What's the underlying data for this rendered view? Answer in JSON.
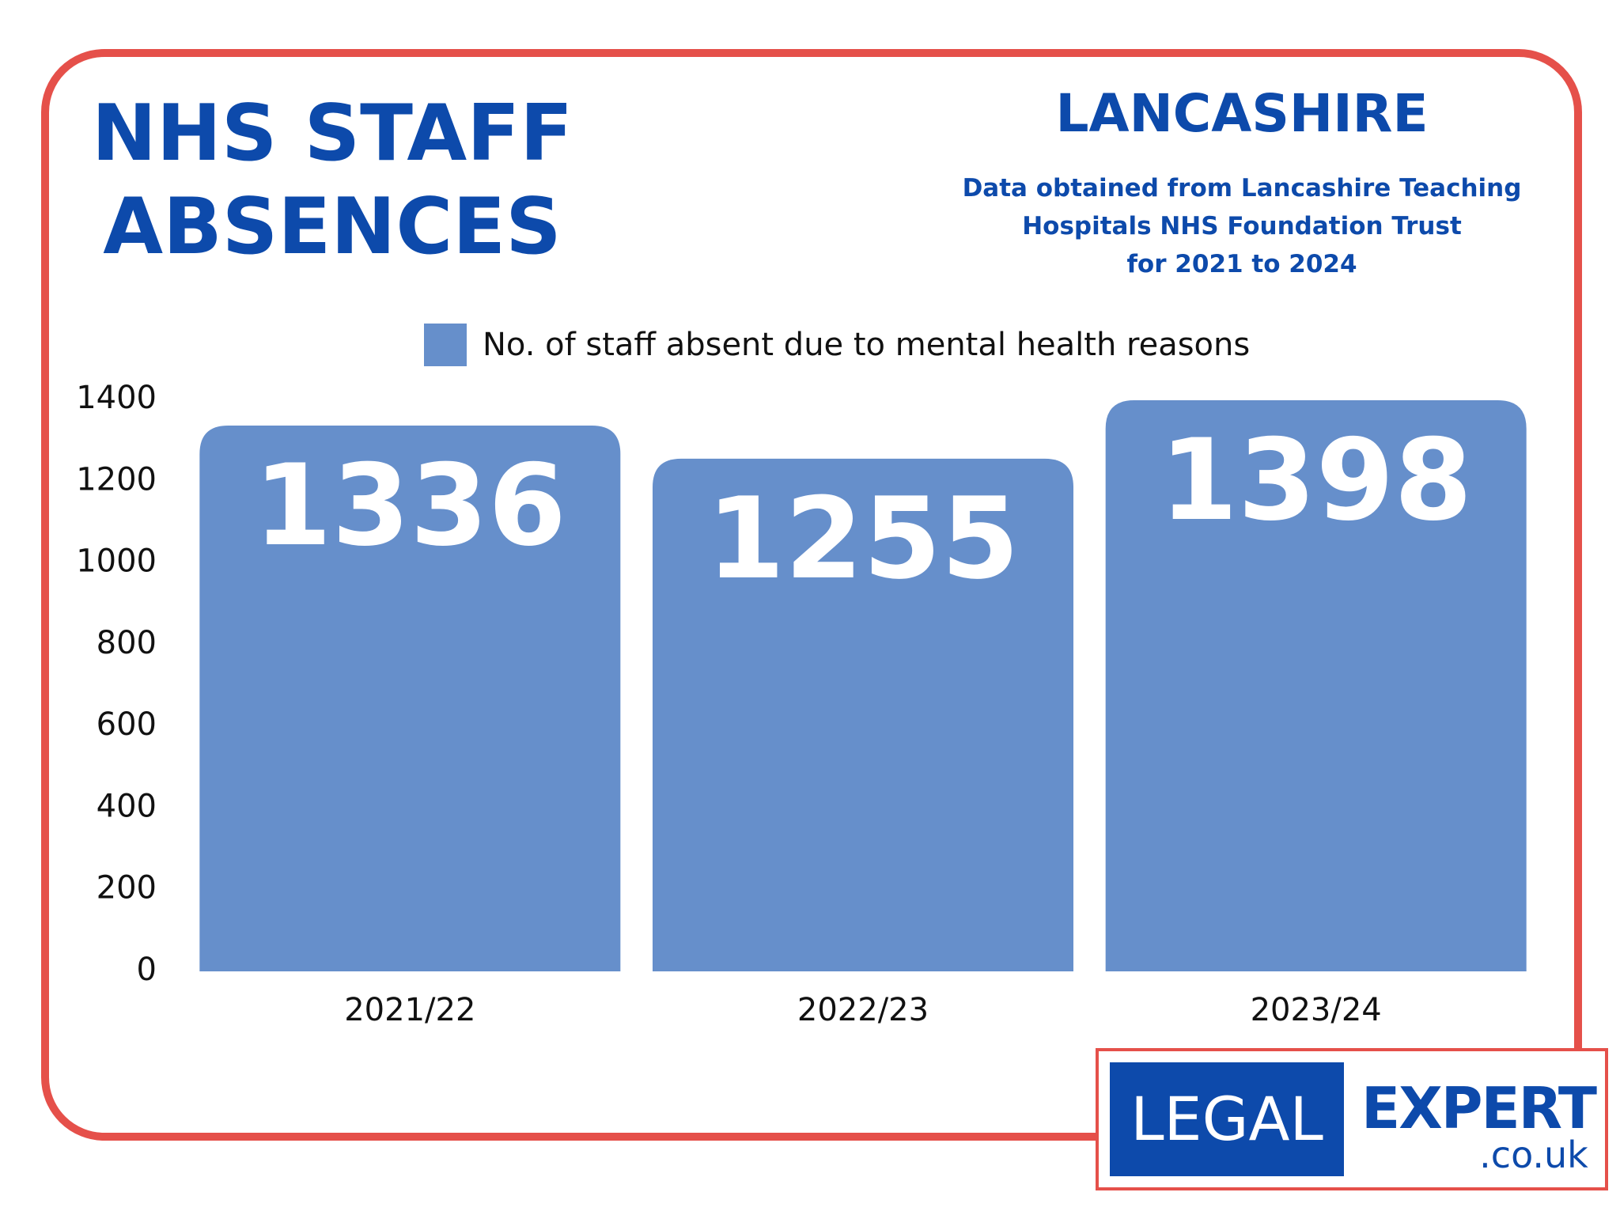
{
  "header": {
    "title_line1": "NHS STAFF",
    "title_line2": "ABSENCES",
    "region": "LANCASHIRE",
    "source_line1": "Data obtained from Lancashire Teaching",
    "source_line2": "Hospitals NHS Foundation Trust",
    "source_line3": "for 2021 to 2024"
  },
  "chart_data": {
    "type": "bar",
    "categories": [
      "2021/22",
      "2022/23",
      "2023/24"
    ],
    "series": [
      {
        "name": "No. of staff absent due to mental health reasons",
        "values": [
          1336,
          1255,
          1398
        ],
        "data_labels": [
          "1336",
          "1255",
          "1398"
        ]
      }
    ],
    "y_ticks": [
      "0",
      "200",
      "400",
      "600",
      "800",
      "1000",
      "1200",
      "1400"
    ],
    "ylim": [
      0,
      1400
    ],
    "grid": false,
    "legend_position": "top-center",
    "bar_color": "#668fcb"
  },
  "logo": {
    "left": "LEGAL",
    "right": "EXPERT",
    "domain": ".co.uk"
  },
  "colors": {
    "frame": "#e5504a",
    "brand_blue": "#0d4aab",
    "bar": "#668fcb"
  }
}
